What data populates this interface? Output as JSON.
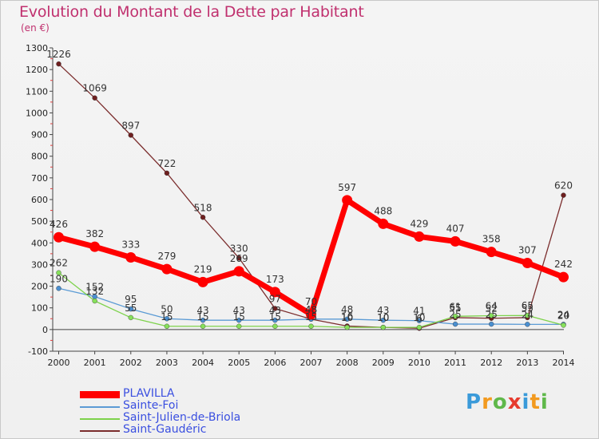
{
  "title": "Evolution du Montant de la Dette par Habitant",
  "unit": "(en €)",
  "logo": {
    "letters": [
      "P",
      "r",
      "o",
      "x",
      "i",
      "t",
      "i"
    ],
    "colors": [
      "#3a9ad9",
      "#f29a1f",
      "#5fb84a",
      "#e63b2e",
      "#3a9ad9",
      "#f29a1f",
      "#5fb84a"
    ]
  },
  "chart_data": {
    "type": "line",
    "categories": [
      "2000",
      "2001",
      "2002",
      "2003",
      "2004",
      "2005",
      "2006",
      "2007",
      "2008",
      "2009",
      "2010",
      "2011",
      "2012",
      "2013",
      "2014"
    ],
    "ylim": [
      -100,
      1300
    ],
    "yticks": [
      "-100",
      "0",
      "100",
      "200",
      "300",
      "400",
      "500",
      "600",
      "700",
      "800",
      "900",
      "1000",
      "1100",
      "1200",
      "1300"
    ],
    "grid": false,
    "legend": "bottom-left",
    "series": [
      {
        "name": "PLAVILLA",
        "color": "#ff0000",
        "values": [
          426,
          382,
          333,
          279,
          219,
          269,
          173,
          70,
          597,
          488,
          429,
          407,
          358,
          307,
          242
        ],
        "labels": [
          "426",
          "382",
          "333",
          "279",
          "219",
          "269",
          "173",
          "70",
          "597",
          "488",
          "429",
          "407",
          "358",
          "307",
          "242"
        ]
      },
      {
        "name": "Sainte-Foi",
        "color": "#5b9bd5",
        "values": [
          190,
          152,
          95,
          50,
          43,
          43,
          43,
          48,
          48,
          43,
          41,
          25,
          25,
          24,
          24
        ],
        "labels": [
          "190",
          "152",
          "95",
          "50",
          "43",
          "43",
          "43",
          "48",
          "48",
          "43",
          "41",
          "25",
          "25",
          "24",
          "24"
        ]
      },
      {
        "name": "Saint-Julien-de-Briola",
        "color": "#7dd24b",
        "values": [
          262,
          132,
          55,
          15,
          15,
          15,
          15,
          15,
          10,
          10,
          10,
          61,
          64,
          65,
          20
        ],
        "labels": [
          "262",
          "132",
          "55",
          "15",
          "15",
          "15",
          "15",
          "15",
          "10",
          "10",
          "10",
          "61",
          "64",
          "65",
          "20"
        ]
      },
      {
        "name": "Saint-Gaudéric",
        "color": "#7b2d2d",
        "values": [
          1226,
          1069,
          897,
          722,
          518,
          330,
          97,
          48,
          16,
          10,
          6,
          55,
          52,
          55,
          620
        ],
        "labels": [
          "1226",
          "1069",
          "897",
          "722",
          "518",
          "330",
          "97",
          "48",
          "16",
          "10",
          "6",
          "55",
          "52",
          "55",
          "620"
        ]
      }
    ]
  }
}
